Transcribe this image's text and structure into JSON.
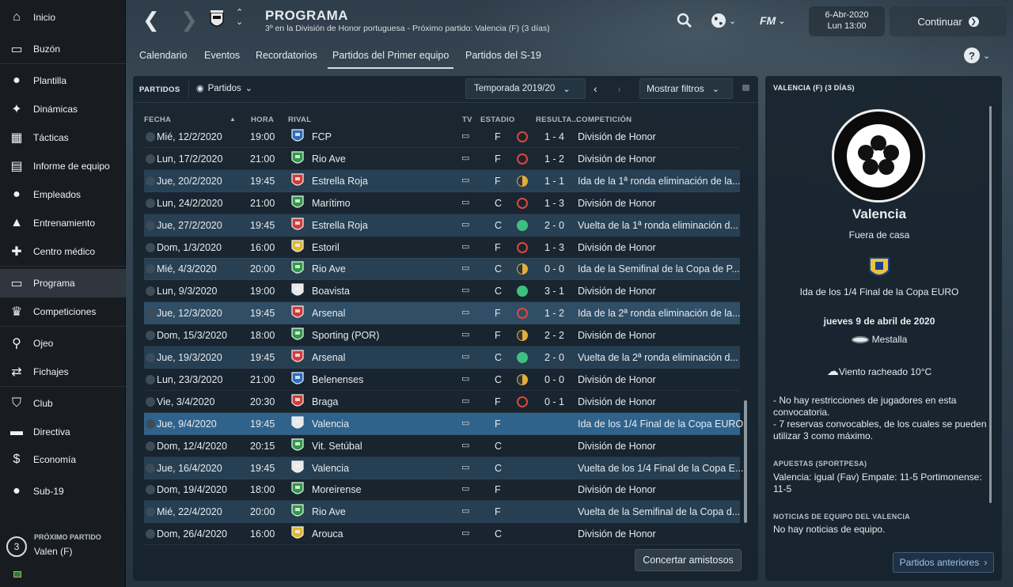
{
  "sidebar": {
    "items": [
      {
        "label": "Inicio",
        "icon": "home-icon"
      },
      {
        "label": "Buzón",
        "icon": "inbox-icon"
      },
      {
        "label": "Plantilla",
        "icon": "squad-icon"
      },
      {
        "label": "Dinámicas",
        "icon": "dynamics-icon"
      },
      {
        "label": "Tácticas",
        "icon": "tactics-icon"
      },
      {
        "label": "Informe de equipo",
        "icon": "report-icon"
      },
      {
        "label": "Empleados",
        "icon": "staff-icon"
      },
      {
        "label": "Entrenamiento",
        "icon": "training-icon"
      },
      {
        "label": "Centro médico",
        "icon": "medical-icon"
      },
      {
        "label": "Programa",
        "icon": "calendar-icon"
      },
      {
        "label": "Competiciones",
        "icon": "trophy-icon"
      },
      {
        "label": "Ojeo",
        "icon": "search-icon"
      },
      {
        "label": "Fichajes",
        "icon": "transfers-icon"
      },
      {
        "label": "Club",
        "icon": "shield-icon"
      },
      {
        "label": "Directiva",
        "icon": "briefcase-icon"
      },
      {
        "label": "Economía",
        "icon": "finance-icon"
      },
      {
        "label": "Sub-19",
        "icon": "u19-icon"
      }
    ],
    "next_match": {
      "label": "PRÓXIMO PARTIDO",
      "count": "3",
      "opponent": "Valen (F)"
    }
  },
  "header": {
    "title": "PROGRAMA",
    "subtitle": "3º en la División de Honor portuguesa - Próximo partido: Valencia (F)  (3 días)",
    "date": "6-Abr-2020",
    "time": "Lun 13:00",
    "continue_label": "Continuar",
    "fm_label": "FM"
  },
  "tabs": [
    "Calendario",
    "Eventos",
    "Recordatorios",
    "Partidos del Primer equipo",
    "Partidos del S-19"
  ],
  "panel": {
    "label": "PARTIDOS",
    "dropdown": "Partidos",
    "season": "Temporada 2019/20",
    "filters": "Mostrar filtros",
    "friendly_button": "Concertar amistosos"
  },
  "columns": {
    "date": "FECHA",
    "time": "HORA",
    "rival": "RIVAL",
    "tv": "TV",
    "stadium": "ESTADIO",
    "result": "RESULTA...",
    "competition": "COMPETICIÓN"
  },
  "matches": [
    {
      "date": "Mié, 12/2/2020",
      "time": "19:00",
      "rival": "FCP",
      "st": "F",
      "res": "loss",
      "score": "1 - 4",
      "comp": "División de Honor",
      "badge": "#2b6cc4"
    },
    {
      "date": "Lun, 17/2/2020",
      "time": "21:00",
      "rival": "Rio Ave",
      "st": "F",
      "res": "loss",
      "score": "1 - 2",
      "comp": "División de Honor",
      "badge": "#2e9a48"
    },
    {
      "date": "Jue, 20/2/2020",
      "time": "19:45",
      "rival": "Estrella Roja",
      "st": "F",
      "res": "draw",
      "score": "1 - 1",
      "comp": "Ida de la 1ª ronda eliminación de la...",
      "badge": "#d33a3a"
    },
    {
      "date": "Lun, 24/2/2020",
      "time": "21:00",
      "rival": "Marítimo",
      "st": "C",
      "res": "loss",
      "score": "1 - 3",
      "comp": "División de Honor",
      "badge": "#2e9a48"
    },
    {
      "date": "Jue, 27/2/2020",
      "time": "19:45",
      "rival": "Estrella Roja",
      "st": "C",
      "res": "win",
      "score": "2 - 0",
      "comp": "Vuelta de la 1ª ronda eliminación d...",
      "badge": "#d33a3a"
    },
    {
      "date": "Dom, 1/3/2020",
      "time": "16:00",
      "rival": "Estoril",
      "st": "F",
      "res": "loss",
      "score": "1 - 3",
      "comp": "División de Honor",
      "badge": "#e0b830"
    },
    {
      "date": "Mié, 4/3/2020",
      "time": "20:00",
      "rival": "Rio Ave",
      "st": "C",
      "res": "draw",
      "score": "0 - 0",
      "comp": "Ida de la Semifinal de la Copa de P...",
      "badge": "#2e9a48"
    },
    {
      "date": "Lun, 9/3/2020",
      "time": "19:00",
      "rival": "Boavista",
      "st": "C",
      "res": "win",
      "score": "3 - 1",
      "comp": "División de Honor",
      "badge": "#e8e8e8"
    },
    {
      "date": "Jue, 12/3/2020",
      "time": "19:45",
      "rival": "Arsenal",
      "st": "F",
      "res": "loss",
      "score": "1 - 2",
      "comp": "Ida de la 2ª ronda eliminación de la...",
      "badge": "#d33a3a"
    },
    {
      "date": "Dom, 15/3/2020",
      "time": "18:00",
      "rival": "Sporting (POR)",
      "st": "F",
      "res": "draw",
      "score": "2 - 2",
      "comp": "División de Honor",
      "badge": "#2e9a48"
    },
    {
      "date": "Jue, 19/3/2020",
      "time": "19:45",
      "rival": "Arsenal",
      "st": "C",
      "res": "win",
      "score": "2 - 0",
      "comp": "Vuelta de la 2ª ronda eliminación d...",
      "badge": "#d33a3a"
    },
    {
      "date": "Lun, 23/3/2020",
      "time": "21:00",
      "rival": "Belenenses",
      "st": "C",
      "res": "draw",
      "score": "0 - 0",
      "comp": "División de Honor",
      "badge": "#2b6cc4"
    },
    {
      "date": "Vie, 3/4/2020",
      "time": "20:30",
      "rival": "Braga",
      "st": "F",
      "res": "loss",
      "score": "0 - 1",
      "comp": "División de Honor",
      "badge": "#d33a3a"
    },
    {
      "date": "Jue, 9/4/2020",
      "time": "19:45",
      "rival": "Valencia",
      "st": "F",
      "res": "",
      "score": "",
      "comp": "Ida de los 1/4 Final de la Copa EURO",
      "badge": "#e8e8e8"
    },
    {
      "date": "Dom, 12/4/2020",
      "time": "20:15",
      "rival": "Vit. Setúbal",
      "st": "C",
      "res": "",
      "score": "",
      "comp": "División de Honor",
      "badge": "#2e9a48"
    },
    {
      "date": "Jue, 16/4/2020",
      "time": "19:45",
      "rival": "Valencia",
      "st": "C",
      "res": "",
      "score": "",
      "comp": "Vuelta de los 1/4 Final de la Copa E...",
      "badge": "#e8e8e8"
    },
    {
      "date": "Dom, 19/4/2020",
      "time": "18:00",
      "rival": "Moreirense",
      "st": "F",
      "res": "",
      "score": "",
      "comp": "División de Honor",
      "badge": "#2e9a48"
    },
    {
      "date": "Mié, 22/4/2020",
      "time": "20:00",
      "rival": "Rio Ave",
      "st": "F",
      "res": "",
      "score": "",
      "comp": "Vuelta de la Semifinal de la Copa d...",
      "badge": "#2e9a48"
    },
    {
      "date": "Dom, 26/4/2020",
      "time": "16:00",
      "rival": "Arouca",
      "st": "C",
      "res": "",
      "score": "",
      "comp": "División de Honor",
      "badge": "#e0b830"
    }
  ],
  "row_styles": [
    "",
    "",
    "alt",
    "",
    "alt",
    "",
    "alt",
    "",
    "hl",
    "",
    "alt",
    "",
    "",
    "sel",
    "",
    "alt",
    "",
    "alt",
    ""
  ],
  "right": {
    "header": "VALENCIA (F)  (3 DÍAS)",
    "team": "Valencia",
    "venue": "Fuera de casa",
    "competition": "Ida de los 1/4 Final de la Copa EURO",
    "date": "jueves 9 de abril de 2020",
    "stadium": "Mestalla",
    "weather": "Viento racheado 10°C",
    "notes": [
      "- No hay restricciones de jugadores en esta convocatoria.",
      "- 7 reservas convocables, de los cuales se pueden utilizar 3 como máximo."
    ],
    "bets_title": "APUESTAS (SPORTPESA)",
    "bets": "Valencia: igual (Fav) Empate: 11-5 Portimonense: 11-5",
    "news_title": "NOTICIAS DE EQUIPO DEL VALENCIA",
    "news": "No hay noticias de equipo.",
    "prev_button": "Partidos anteriores"
  }
}
